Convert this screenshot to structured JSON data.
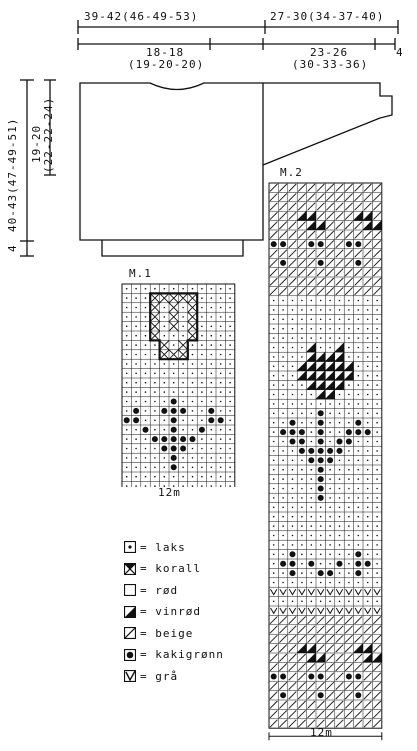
{
  "measurements": {
    "top_left": "39-42(46-49-53)",
    "top_right": "27-30(34-37-40)",
    "body_half_1": "18-18",
    "body_half_2": "(19-20-20)",
    "sleeve_1": "23-26",
    "sleeve_2": "(30-33-36)",
    "cuff": "4",
    "armhole_1": "19-20",
    "armhole_2": "(22-22-24)",
    "length": "40-43(47-49-51)",
    "rib": "4"
  },
  "chart1": {
    "title": "M.1",
    "width_label": "12m",
    "cols": 12,
    "rows": [
      "............",
      "...XXXXX....",
      "...X.X.X....",
      "...X.X.X....",
      "...X.X.X....",
      "...X...X....",
      "....X.X.....",
      "....XXX.....",
      "............",
      "............",
      "............",
      "............",
      ".....k......",
      ".k..kkk..k..",
      "kk...k...kk.",
      "..k..k..k...",
      "...kkkkk....",
      "....kkk.....",
      ".....k......",
      ".....k......",
      "............",
      "............",
      "............"
    ]
  },
  "chart2": {
    "title": "M.2",
    "width_label": "12m",
    "cols": 12,
    "rows": [
      "bbbbbbbbbbbb",
      "bbbbbbbbbbbb",
      "bbbbbbbbbbbb",
      "bbbVVbbbbVVb",
      "bbbbVVbbbbVV",
      "bbbbbbbbbbbb",
      "kkbbkkbbkkbb",
      "bbbbbbbbbbbb",
      "bkbbbkbbbkbb",
      "bbbbbbbbbbbb",
      "bbbbbbbbbbbb",
      "bbbbbbbbbbbb",
      "............",
      "............",
      "............",
      "............",
      "............",
      "....V..V....",
      "....VVVV....",
      "...VVVVVV...",
      "...VVVVVV...",
      "....VVVV....",
      ".....VV.....",
      "............",
      ".....k......",
      "..k..k...k..",
      ".kkk.k..kkk.",
      "..kk.k.kk...",
      "...kkkkk....",
      "....kkk.....",
      ".....k......",
      ".....k......",
      ".....k......",
      ".....k......",
      "............",
      "............",
      "............",
      "............",
      "............",
      "..k......k..",
      ".kk.k..k.kk.",
      "..k..kk..k..",
      "............",
      "gggggggggggg",
      "............",
      "gggggggggggg",
      "bbbbbbbbbbbb",
      "bbbbbbbbbbbb",
      "bbbbbbbbbbbb",
      "bbbVVbbbbVVb",
      "bbbbVVbbbbVV",
      "bbbbbbbbbbbb",
      "kkbbkkbbkkbb",
      "bbbbbbbbbbbb",
      "bkbbbkbbbkbb",
      "bbbbbbbbbbbb",
      "bbbbbbbbbbbb",
      "bbbbbbbbbbbb"
    ]
  },
  "legend": [
    {
      "symbol": "laks",
      "label": "= laks"
    },
    {
      "symbol": "korall",
      "label": "= korall"
    },
    {
      "symbol": "rod",
      "label": "= rød"
    },
    {
      "symbol": "vinrod",
      "label": "= vinrød"
    },
    {
      "symbol": "beige",
      "label": "= beige"
    },
    {
      "symbol": "kakigronn",
      "label": "= kakigrønn"
    },
    {
      "symbol": "gra",
      "label": "= grå"
    }
  ],
  "colors": {
    "ink": "#111111",
    "paper": "#ffffff"
  }
}
